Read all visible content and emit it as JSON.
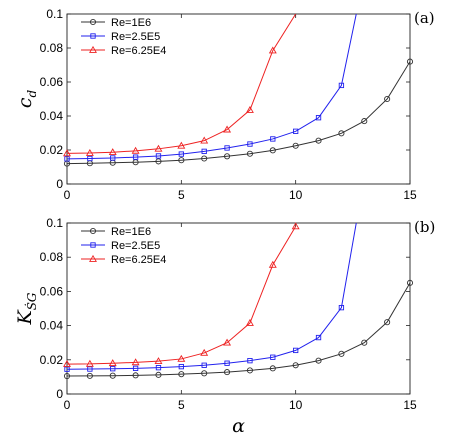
{
  "figure": {
    "xlabel": "α",
    "colors": {
      "Re=1E6": "#333333",
      "Re=2.5E5": "#2222ee",
      "Re=6.25E4": "#ee2222"
    }
  },
  "chart_data": [
    {
      "type": "line",
      "panel_label": "(a)",
      "ylabel_main": "c",
      "ylabel_sub": "d",
      "xlabel": "",
      "xlim": [
        0,
        15
      ],
      "ylim": [
        0,
        0.1
      ],
      "xticks": [
        "0",
        "5",
        "10",
        "15"
      ],
      "yticks": [
        "0",
        "0.02",
        "0.04",
        "0.06",
        "0.08",
        "0.1"
      ],
      "grid": false,
      "legend": "top-left",
      "series": [
        {
          "name": "Re=1E6",
          "marker": "circle",
          "color": "#333333",
          "x": [
            0,
            1,
            2,
            3,
            4,
            5,
            6,
            7,
            8,
            9,
            10,
            11,
            12,
            13,
            14,
            15
          ],
          "y": [
            0.012,
            0.0122,
            0.0125,
            0.0128,
            0.0133,
            0.014,
            0.015,
            0.0163,
            0.0178,
            0.0198,
            0.0225,
            0.0255,
            0.0298,
            0.037,
            0.05,
            0.072
          ]
        },
        {
          "name": "Re=2.5E5",
          "marker": "square",
          "color": "#2222ee",
          "x": [
            0,
            1,
            2,
            3,
            4,
            5,
            6,
            7,
            8,
            9,
            10,
            11,
            12,
            12.65
          ],
          "y": [
            0.0148,
            0.015,
            0.0153,
            0.0158,
            0.0165,
            0.0176,
            0.0192,
            0.0212,
            0.0235,
            0.0265,
            0.031,
            0.039,
            0.058,
            0.1
          ]
        },
        {
          "name": "Re=6.25E4",
          "marker": "triangle",
          "color": "#ee2222",
          "x": [
            0,
            1,
            2,
            3,
            4,
            5,
            6,
            7,
            8,
            9,
            10
          ],
          "y": [
            0.018,
            0.0182,
            0.0187,
            0.0195,
            0.0207,
            0.0225,
            0.0255,
            0.032,
            0.0435,
            0.0785,
            0.1
          ]
        }
      ]
    },
    {
      "type": "line",
      "panel_label": "(b)",
      "ylabel_main": "K",
      "ylabel_sub": "ṠG",
      "xlabel": "α",
      "xlim": [
        0,
        15
      ],
      "ylim": [
        0,
        0.1
      ],
      "xticks": [
        "0",
        "5",
        "10",
        "15"
      ],
      "yticks": [
        "0",
        "0.02",
        "0.04",
        "0.06",
        "0.08",
        "0.1"
      ],
      "grid": false,
      "legend": "top-left",
      "series": [
        {
          "name": "Re=1E6",
          "marker": "circle",
          "color": "#333333",
          "x": [
            0,
            1,
            2,
            3,
            4,
            5,
            6,
            7,
            8,
            9,
            10,
            11,
            12,
            13,
            14,
            15
          ],
          "y": [
            0.0105,
            0.0106,
            0.0107,
            0.0109,
            0.0112,
            0.0116,
            0.0121,
            0.0128,
            0.0138,
            0.015,
            0.0168,
            0.0195,
            0.0235,
            0.03,
            0.042,
            0.065
          ]
        },
        {
          "name": "Re=2.5E5",
          "marker": "square",
          "color": "#2222ee",
          "x": [
            0,
            1,
            2,
            3,
            4,
            5,
            6,
            7,
            8,
            9,
            10,
            11,
            12,
            12.65
          ],
          "y": [
            0.0145,
            0.0146,
            0.0148,
            0.015,
            0.0154,
            0.016,
            0.0168,
            0.018,
            0.0195,
            0.0215,
            0.0255,
            0.033,
            0.0505,
            0.1
          ]
        },
        {
          "name": "Re=6.25E4",
          "marker": "triangle",
          "color": "#ee2222",
          "x": [
            0,
            1,
            2,
            3,
            4,
            5,
            6,
            7,
            8,
            9,
            10
          ],
          "y": [
            0.0175,
            0.0176,
            0.018,
            0.0185,
            0.0192,
            0.0205,
            0.024,
            0.03,
            0.0415,
            0.0755,
            0.098
          ]
        }
      ]
    }
  ]
}
